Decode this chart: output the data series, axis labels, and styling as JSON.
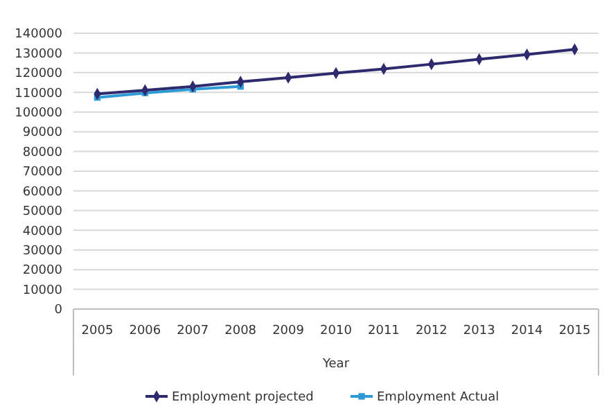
{
  "chart_data": {
    "type": "line",
    "xlabel": "Year",
    "categories": [
      "2005",
      "2006",
      "2007",
      "2008",
      "2009",
      "2010",
      "2011",
      "2012",
      "2013",
      "2014",
      "2015"
    ],
    "series": [
      {
        "name": "Employment projected",
        "color": "#2e2a6e",
        "marker": "diamond",
        "values": [
          109200,
          111100,
          113000,
          115400,
          117500,
          119800,
          121900,
          124300,
          126800,
          129200,
          131800
        ]
      },
      {
        "name": "Employment Actual",
        "color": "#2e9bd6",
        "marker": "square",
        "values": [
          107400,
          109700,
          111600,
          113000,
          null,
          null,
          null,
          null,
          null,
          null,
          null
        ]
      }
    ],
    "ylim": [
      0,
      140000
    ],
    "yticks": [
      0,
      10000,
      20000,
      30000,
      40000,
      50000,
      60000,
      70000,
      80000,
      90000,
      100000,
      110000,
      120000,
      130000,
      140000
    ],
    "grid": "y",
    "legend": "bottom",
    "line_style": "solid"
  }
}
